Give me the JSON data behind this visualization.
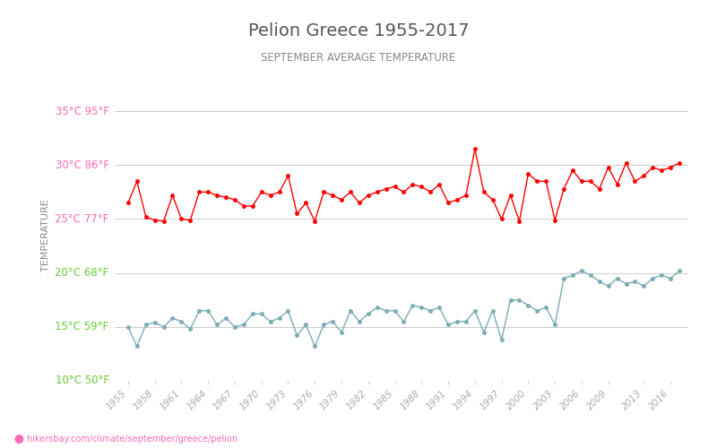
{
  "title": "Pelion Greece 1955-2017",
  "subtitle": "SEPTEMBER AVERAGE TEMPERATURE",
  "ylabel": "TEMPERATURE",
  "footer": "hikersbay.com/climate/september/greece/pelion",
  "years": [
    1955,
    1956,
    1957,
    1958,
    1959,
    1960,
    1961,
    1962,
    1963,
    1964,
    1965,
    1966,
    1967,
    1968,
    1969,
    1970,
    1971,
    1972,
    1973,
    1974,
    1975,
    1976,
    1977,
    1978,
    1979,
    1980,
    1981,
    1982,
    1983,
    1984,
    1985,
    1986,
    1987,
    1988,
    1989,
    1990,
    1991,
    1992,
    1993,
    1994,
    1995,
    1996,
    1997,
    1998,
    1999,
    2000,
    2001,
    2002,
    2003,
    2004,
    2005,
    2006,
    2007,
    2008,
    2009,
    2010,
    2011,
    2012,
    2013,
    2014,
    2015,
    2016,
    2017
  ],
  "day_temps": [
    26.5,
    28.5,
    25.2,
    24.9,
    24.8,
    27.2,
    25.0,
    24.9,
    27.5,
    27.5,
    27.2,
    27.0,
    26.8,
    26.2,
    26.2,
    27.5,
    27.2,
    27.5,
    29.0,
    25.5,
    26.5,
    24.8,
    27.5,
    27.2,
    26.8,
    27.5,
    26.5,
    27.2,
    27.5,
    27.8,
    28.0,
    27.5,
    28.2,
    28.0,
    27.5,
    28.2,
    26.5,
    26.8,
    27.2,
    31.5,
    27.5,
    26.8,
    25.0,
    27.2,
    24.8,
    29.2,
    28.5,
    28.5,
    24.9,
    27.8,
    29.5,
    28.5,
    28.5,
    27.8,
    29.8,
    28.2,
    30.2,
    28.5,
    29.0,
    29.8,
    29.5,
    29.8,
    30.2
  ],
  "night_temps": [
    15.0,
    13.2,
    15.2,
    15.4,
    15.0,
    15.8,
    15.5,
    14.8,
    16.5,
    16.5,
    15.2,
    15.8,
    15.0,
    15.2,
    16.2,
    16.2,
    15.5,
    15.8,
    16.5,
    14.2,
    15.2,
    13.2,
    15.2,
    15.5,
    14.5,
    16.5,
    15.5,
    16.2,
    16.8,
    16.5,
    16.5,
    15.5,
    17.0,
    16.8,
    16.5,
    16.8,
    15.2,
    15.5,
    15.5,
    16.5,
    14.5,
    16.5,
    13.8,
    17.5,
    17.5,
    17.0,
    16.5,
    16.8,
    15.2,
    19.5,
    19.8,
    20.2,
    19.8,
    19.2,
    18.8,
    19.5,
    19.0,
    19.2,
    18.8,
    19.5,
    19.8,
    19.5,
    20.2
  ],
  "yticks_c": [
    10,
    15,
    20,
    25,
    30,
    35
  ],
  "yticks_f": [
    50,
    59,
    68,
    77,
    86,
    95
  ],
  "ylim": [
    10,
    37
  ],
  "xlim": [
    1953.5,
    2018
  ],
  "day_color": "#ff0000",
  "night_color": "#7aacb5",
  "title_color": "#555555",
  "subtitle_color": "#888888",
  "ylabel_color": "#888888",
  "pink_color": "#ff69b4",
  "green_color": "#66cc33",
  "grid_color": "#cccccc",
  "background_color": "#ffffff",
  "footer_color": "#ff69b4",
  "xtick_color": "#aaaaaa",
  "xtick_years": [
    1955,
    1958,
    1961,
    1964,
    1967,
    1970,
    1973,
    1976,
    1979,
    1982,
    1985,
    1988,
    1991,
    1994,
    1997,
    2000,
    2003,
    2006,
    2009,
    2013,
    2016
  ]
}
